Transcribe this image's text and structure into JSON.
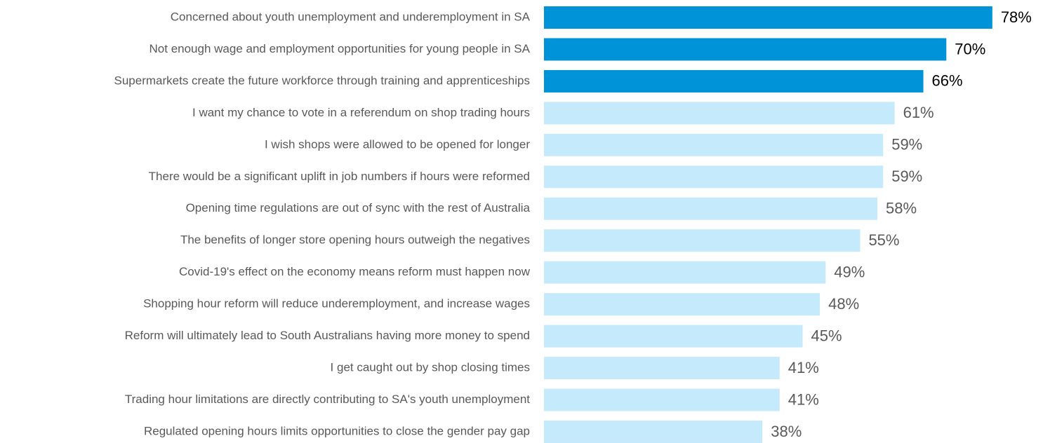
{
  "chart_data": {
    "type": "bar",
    "orientation": "horizontal",
    "categories": [
      "Concerned about youth unemployment and underemployment in SA",
      "Not enough wage and employment opportunities for young people in SA",
      "Supermarkets create the future workforce through training and apprenticeships",
      "I want my chance to vote in a referendum on shop trading hours",
      "I wish shops were allowed to be opened for longer",
      "There would be a significant uplift in job numbers if hours were reformed",
      "Opening time regulations are out of sync with the rest of Australia",
      "The benefits of longer store opening hours outweigh the negatives",
      "Covid-19's effect on the economy means reform must happen now",
      "Shopping hour reform will reduce underemployment, and increase wages",
      "Reform will ultimately lead to South Australians having more money to spend",
      "I get caught out by shop closing times",
      "Trading hour limitations are directly contributing to SA's youth unemployment",
      "Regulated opening hours limits opportunities to close the gender pay gap"
    ],
    "values": [
      78,
      70,
      66,
      61,
      59,
      59,
      58,
      55,
      49,
      48,
      45,
      41,
      41,
      38
    ],
    "value_labels": [
      "78%",
      "70%",
      "66%",
      "61%",
      "59%",
      "59%",
      "58%",
      "55%",
      "49%",
      "48%",
      "45%",
      "41%",
      "41%",
      "38%"
    ],
    "colors": [
      "#0093d7",
      "#0093d7",
      "#0093d7",
      "#c5eafb",
      "#c5eafb",
      "#c5eafb",
      "#c5eafb",
      "#c5eafb",
      "#c5eafb",
      "#c5eafb",
      "#c5eafb",
      "#c5eafb",
      "#c5eafb",
      "#c5eafb"
    ],
    "label_colors": [
      "#000000",
      "#000000",
      "#000000",
      "#595959",
      "#595959",
      "#595959",
      "#595959",
      "#595959",
      "#595959",
      "#595959",
      "#595959",
      "#595959",
      "#595959",
      "#595959"
    ]
  }
}
